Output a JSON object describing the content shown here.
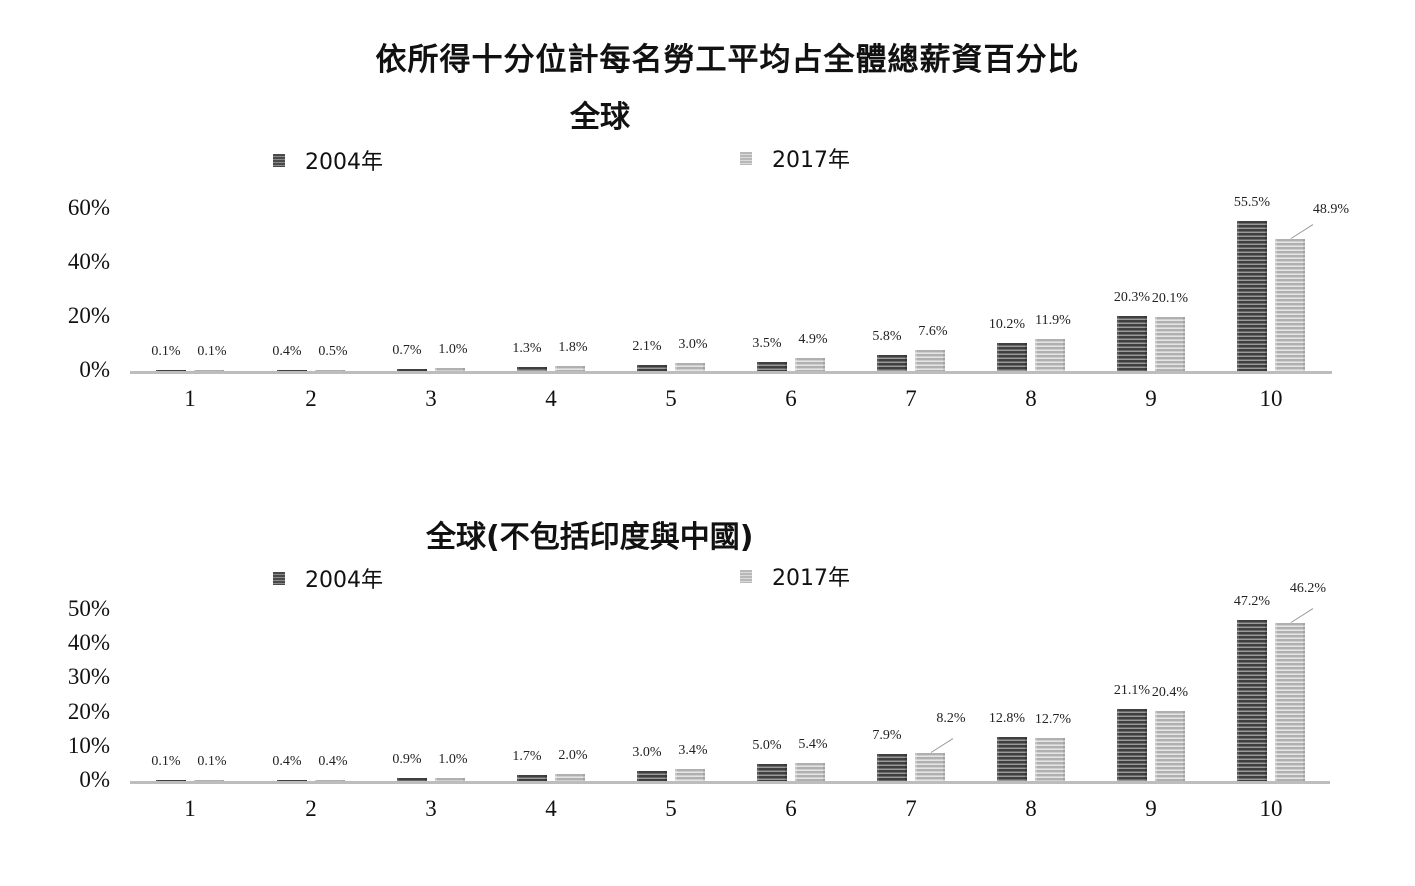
{
  "title": "依所得十分位計每名勞工平均占全體總薪資百分比",
  "chart_data": [
    {
      "type": "bar",
      "title": "全球",
      "xlabel": "",
      "ylabel": "",
      "categories": [
        "1",
        "2",
        "3",
        "4",
        "5",
        "6",
        "7",
        "8",
        "9",
        "10"
      ],
      "series": [
        {
          "name": "2004年",
          "values": [
            0.1,
            0.4,
            0.7,
            1.3,
            2.1,
            3.5,
            5.8,
            10.2,
            20.3,
            55.5
          ],
          "color": "#555555"
        },
        {
          "name": "2017年",
          "values": [
            0.1,
            0.5,
            1.0,
            1.8,
            3.0,
            4.9,
            7.6,
            11.9,
            20.1,
            48.9
          ],
          "color": "#c4c4c4"
        }
      ],
      "data_labels": {
        "2004年": [
          "0.1%",
          "0.4%",
          "0.7%",
          "1.3%",
          "2.1%",
          "3.5%",
          "5.8%",
          "10.2%",
          "20.3%",
          "55.5%"
        ],
        "2017年": [
          "0.1%",
          "0.5%",
          "1.0%",
          "1.8%",
          "3.0%",
          "4.9%",
          "7.6%",
          "11.9%",
          "20.1%",
          "48.9%"
        ]
      },
      "yticks": [
        "0%",
        "20%",
        "40%",
        "60%"
      ],
      "ylim": [
        0,
        60
      ],
      "grid": false,
      "legend_position": "top"
    },
    {
      "type": "bar",
      "title": "全球(不包括印度與中國)",
      "xlabel": "",
      "ylabel": "",
      "categories": [
        "1",
        "2",
        "3",
        "4",
        "5",
        "6",
        "7",
        "8",
        "9",
        "10"
      ],
      "series": [
        {
          "name": "2004年",
          "values": [
            0.1,
            0.4,
            0.9,
            1.7,
            3.0,
            5.0,
            7.9,
            12.8,
            21.1,
            47.2
          ],
          "color": "#555555"
        },
        {
          "name": "2017年",
          "values": [
            0.1,
            0.4,
            1.0,
            2.0,
            3.4,
            5.4,
            8.2,
            12.7,
            20.4,
            46.2
          ],
          "color": "#c4c4c4"
        }
      ],
      "data_labels": {
        "2004年": [
          "0.1%",
          "0.4%",
          "0.9%",
          "1.7%",
          "3.0%",
          "5.0%",
          "7.9%",
          "12.8%",
          "21.1%",
          "47.2%"
        ],
        "2017年": [
          "0.1%",
          "0.4%",
          "1.0%",
          "2.0%",
          "3.4%",
          "5.4%",
          "8.2%",
          "12.7%",
          "20.4%",
          "46.2%"
        ]
      },
      "yticks": [
        "0%",
        "10%",
        "20%",
        "30%",
        "40%",
        "50%"
      ],
      "ylim": [
        0,
        50
      ],
      "grid": false,
      "legend_position": "top"
    }
  ]
}
